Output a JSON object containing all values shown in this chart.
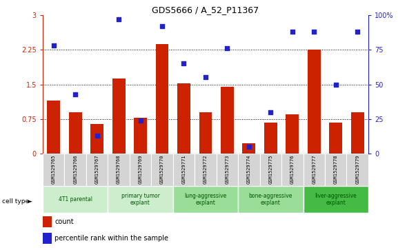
{
  "title": "GDS5666 / A_52_P11367",
  "samples": [
    "GSM1529765",
    "GSM1529766",
    "GSM1529767",
    "GSM1529768",
    "GSM1529769",
    "GSM1529770",
    "GSM1529771",
    "GSM1529772",
    "GSM1529773",
    "GSM1529774",
    "GSM1529775",
    "GSM1529776",
    "GSM1529777",
    "GSM1529778",
    "GSM1529779"
  ],
  "count_values": [
    1.15,
    0.9,
    0.65,
    1.63,
    0.78,
    2.37,
    1.52,
    0.9,
    1.45,
    0.22,
    0.68,
    0.85,
    2.25,
    0.68,
    0.9
  ],
  "percentile_values": [
    78,
    43,
    13,
    97,
    24,
    92,
    65,
    55,
    76,
    5,
    30,
    88,
    88,
    50,
    88
  ],
  "bar_color": "#cc2200",
  "dot_color": "#2222cc",
  "ylim_left": [
    0,
    3
  ],
  "ylim_right": [
    0,
    100
  ],
  "yticks_left": [
    0,
    0.75,
    1.5,
    2.25,
    3
  ],
  "ytick_labels_left": [
    "0",
    "0.75",
    "1.5",
    "2.25",
    "3"
  ],
  "yticks_right": [
    0,
    25,
    50,
    75,
    100
  ],
  "ytick_labels_right": [
    "0",
    "25",
    "50",
    "75",
    "100%"
  ],
  "bar_width": 0.6,
  "dot_size": 18,
  "cell_types": [
    {
      "label": "4T1 parental",
      "start": 0,
      "end": 3,
      "color": "#cceecc"
    },
    {
      "label": "primary tumor\nexplant",
      "start": 3,
      "end": 6,
      "color": "#cceecc"
    },
    {
      "label": "lung-aggressive\nexplant",
      "start": 6,
      "end": 9,
      "color": "#99dd99"
    },
    {
      "label": "bone-aggressive\nexplant",
      "start": 9,
      "end": 12,
      "color": "#99dd99"
    },
    {
      "label": "liver-aggressive\nexplant",
      "start": 12,
      "end": 15,
      "color": "#44bb44"
    }
  ]
}
